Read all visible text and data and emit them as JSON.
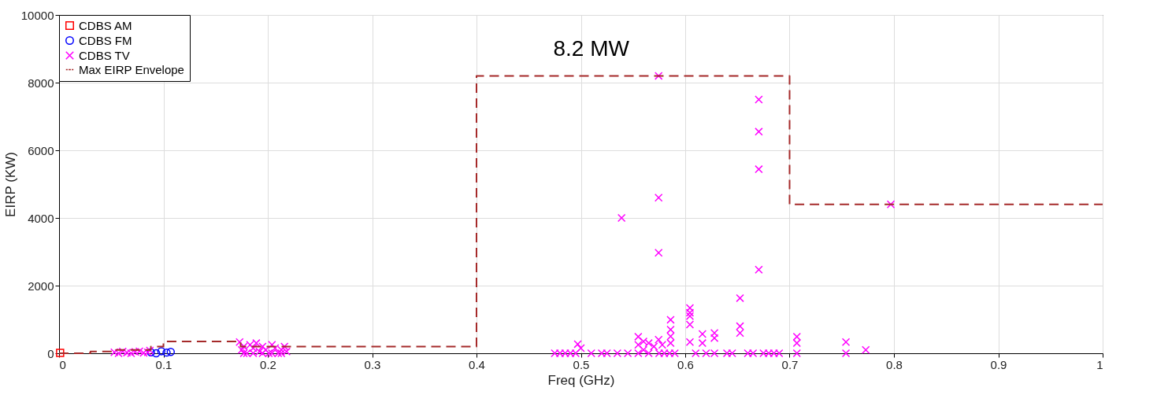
{
  "chart_data": {
    "type": "scatter",
    "xlabel": "Freq (GHz)",
    "ylabel": "EIRP (KW)",
    "xlim": [
      0,
      1
    ],
    "xticks": [
      0,
      0.1,
      0.2,
      0.3,
      0.4,
      0.5,
      0.6,
      0.7,
      0.8,
      0.9,
      1
    ],
    "ylim": [
      0,
      10000
    ],
    "yticks": [
      0,
      2000,
      4000,
      6000,
      8000,
      10000
    ],
    "grid": true,
    "legend": "top left",
    "annotations": [
      "8.2 MW"
    ],
    "series": [
      {
        "name": "CDBS AM",
        "type": "scatter",
        "marker": "square",
        "color": "#ff0000",
        "x": [
          0.001
        ],
        "values": [
          10
        ]
      },
      {
        "name": "CDBS FM",
        "type": "scatter",
        "marker": "circle",
        "color": "#0000ff",
        "x": [
          0.088,
          0.093,
          0.098,
          0.103,
          0.107
        ],
        "values": [
          30,
          0,
          60,
          20,
          40
        ]
      },
      {
        "name": "CDBS TV",
        "type": "scatter",
        "marker": "cross",
        "color": "#ff00ff",
        "x": [
          0.053,
          0.057,
          0.061,
          0.065,
          0.069,
          0.073,
          0.077,
          0.081,
          0.085,
          0.087,
          0.173,
          0.175,
          0.177,
          0.18,
          0.183,
          0.186,
          0.189,
          0.192,
          0.195,
          0.198,
          0.201,
          0.204,
          0.207,
          0.21,
          0.213,
          0.216,
          0.218,
          0.177,
          0.186,
          0.195,
          0.204,
          0.213,
          0.475,
          0.48,
          0.485,
          0.49,
          0.495,
          0.497,
          0.5,
          0.51,
          0.52,
          0.525,
          0.535,
          0.539,
          0.545,
          0.555,
          0.555,
          0.555,
          0.56,
          0.56,
          0.565,
          0.565,
          0.57,
          0.5745,
          0.5745,
          0.5745,
          0.5745,
          0.575,
          0.578,
          0.58,
          0.585,
          0.586,
          0.586,
          0.586,
          0.586,
          0.59,
          0.6045,
          0.6045,
          0.6045,
          0.6045,
          0.6045,
          0.61,
          0.6165,
          0.6165,
          0.62,
          0.628,
          0.628,
          0.628,
          0.64,
          0.645,
          0.6525,
          0.6525,
          0.6525,
          0.66,
          0.665,
          0.6705,
          0.6705,
          0.6705,
          0.6705,
          0.675,
          0.68,
          0.685,
          0.69,
          0.707,
          0.707,
          0.707,
          0.754,
          0.754,
          0.773,
          0.797
        ],
        "values": [
          30,
          0,
          50,
          20,
          0,
          40,
          60,
          10,
          30,
          80,
          330,
          100,
          200,
          0,
          250,
          150,
          300,
          50,
          200,
          100,
          0,
          250,
          150,
          0,
          100,
          200,
          50,
          0,
          0,
          0,
          0,
          0,
          0,
          0,
          0,
          0,
          0,
          270,
          150,
          0,
          0,
          0,
          0,
          4000,
          0,
          490,
          250,
          0,
          350,
          100,
          300,
          0,
          200,
          8200,
          4600,
          2970,
          400,
          0,
          250,
          0,
          0,
          990,
          700,
          500,
          300,
          0,
          1340,
          1200,
          1100,
          850,
          330,
          0,
          570,
          300,
          0,
          600,
          450,
          0,
          0,
          0,
          1630,
          800,
          600,
          0,
          0,
          7500,
          6550,
          5440,
          2470,
          0,
          0,
          0,
          0,
          490,
          300,
          0,
          330,
          0,
          100,
          4400
        ]
      },
      {
        "name": "Max EIRP Envelope",
        "type": "step",
        "line_style": "dashed",
        "color": "#a52a2a",
        "x": [
          0,
          0.03,
          0.054,
          0.088,
          0.1,
          0.174,
          0.4,
          0.7,
          1.0
        ],
        "values": [
          0,
          50,
          100,
          200,
          350,
          200,
          8200,
          4400,
          4400
        ]
      }
    ]
  }
}
